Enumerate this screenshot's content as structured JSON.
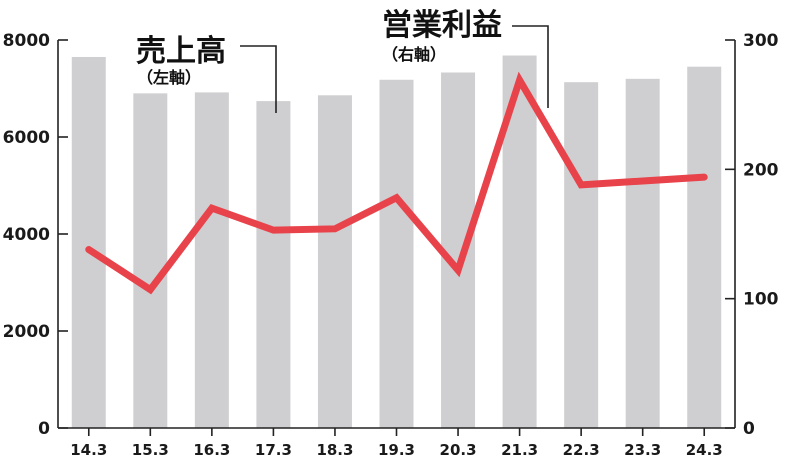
{
  "chart_data": {
    "type": "bar+line",
    "categories": [
      "14.3",
      "15.3",
      "16.3",
      "17.3",
      "18.3",
      "19.3",
      "20.3",
      "21.3",
      "22.3",
      "23.3",
      "24.3"
    ],
    "series": [
      {
        "name": "売上高",
        "sub": "（左軸）",
        "type": "bar",
        "axis": "left",
        "color": "#cfcfd1",
        "values": [
          7650,
          6900,
          6920,
          6740,
          6860,
          7180,
          7330,
          7680,
          7130,
          7200,
          7450
        ]
      },
      {
        "name": "営業利益",
        "sub": "（右軸）",
        "type": "line",
        "axis": "right",
        "color": "#e8434b",
        "values": [
          138,
          107,
          170,
          153,
          154,
          178,
          122,
          269,
          188,
          191,
          194
        ]
      }
    ],
    "left_axis": {
      "range": [
        0,
        8000
      ],
      "ticks": [
        "0",
        "2000",
        "4000",
        "6000",
        "8000"
      ]
    },
    "right_axis": {
      "range": [
        0,
        300
      ],
      "ticks": [
        "0",
        "100",
        "200",
        "300"
      ]
    },
    "grid": false,
    "legend": "inline-labels"
  }
}
